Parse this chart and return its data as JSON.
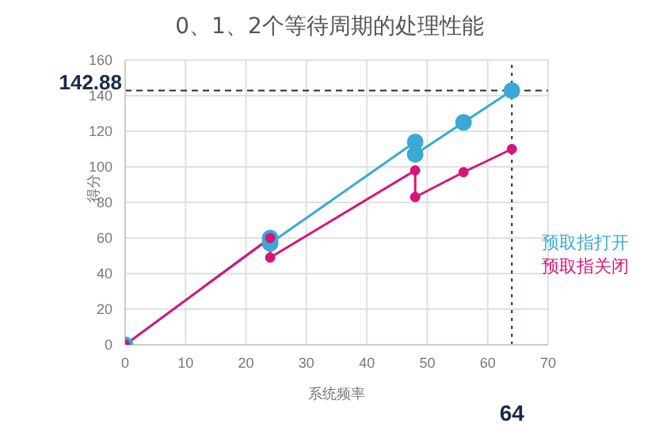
{
  "chart_data": {
    "type": "line",
    "title": "0、1、2个等待周期的处理性能",
    "xlabel": "系统频率",
    "ylabel": "得分",
    "series": [
      {
        "name": "预取指打开",
        "color": "#3ba9d6",
        "x": [
          0,
          24,
          24,
          48,
          48,
          56,
          64
        ],
        "values": [
          0,
          60,
          57,
          114,
          107,
          125,
          142.88
        ]
      },
      {
        "name": "预取指关闭",
        "color": "#d6157a",
        "x": [
          0,
          24,
          24,
          48,
          48,
          56,
          64
        ],
        "values": [
          0,
          60,
          49,
          98,
          83,
          97,
          110
        ]
      }
    ],
    "xlim": [
      0,
      70
    ],
    "xticks": [
      0,
      10,
      20,
      30,
      40,
      50,
      60,
      70
    ],
    "ylim": [
      0,
      160
    ],
    "yticks": [
      0,
      20,
      40,
      60,
      80,
      100,
      120,
      140,
      160
    ],
    "ref_lines": [
      {
        "axis": "y",
        "value": 142.88,
        "label": "142.88",
        "color": "#1a2a4a",
        "line_style": "dashed"
      },
      {
        "axis": "x",
        "value": 64,
        "label": "64",
        "color": "#1a2a4a",
        "line_style": "dotted"
      }
    ],
    "grid": true,
    "legend": "right",
    "marker": "circle",
    "line_style": "solid"
  }
}
